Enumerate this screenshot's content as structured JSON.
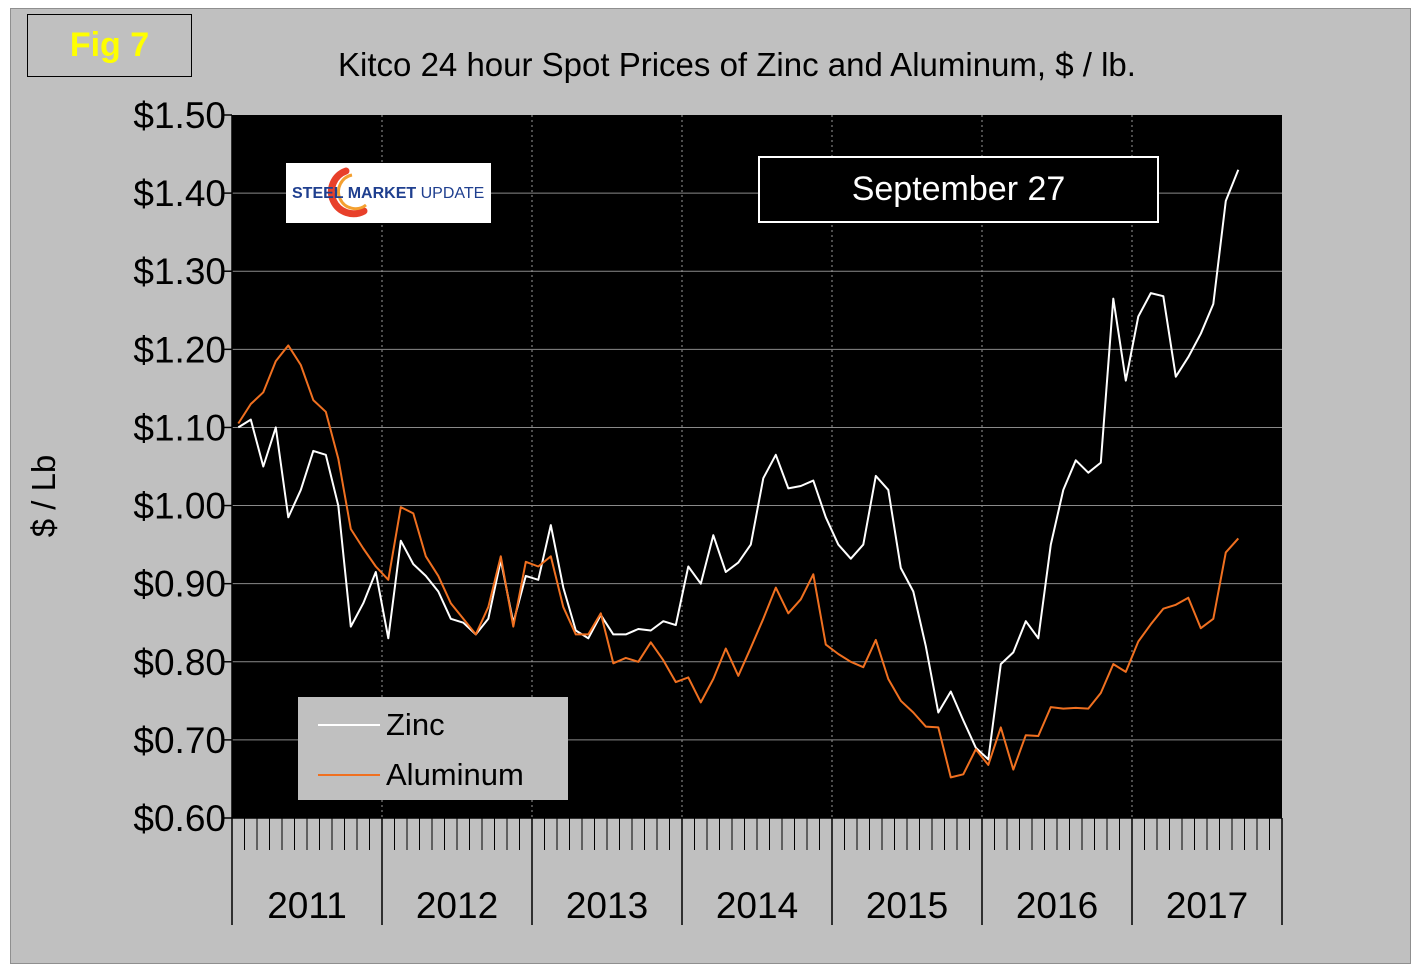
{
  "figure_label": "Fig 7",
  "date_label": "September 27",
  "logo": {
    "bold_text": "STEEL MARKET",
    "normal_text": "UPDATE"
  },
  "chart_data": {
    "type": "line",
    "title": "Kitco 24 hour Spot Prices of Zinc and Aluminum, $ / lb.",
    "xlabel": "",
    "ylabel": "$ / Lb",
    "ylim": [
      0.6,
      1.5
    ],
    "ytick_values": [
      0.6,
      0.7,
      0.8,
      0.9,
      1.0,
      1.1,
      1.2,
      1.3,
      1.4,
      1.5
    ],
    "ytick_labels": [
      "$0.60",
      "$0.70",
      "$0.80",
      "$0.90",
      "$1.00",
      "$1.10",
      "$1.20",
      "$1.30",
      "$1.40",
      "$1.50"
    ],
    "year_labels": [
      "2011",
      "2012",
      "2013",
      "2014",
      "2015",
      "2016",
      "2017"
    ],
    "grid": true,
    "legend_position": "bottom-left",
    "background": "#000000",
    "series": [
      {
        "name": "Zinc",
        "color": "#ffffff",
        "values": [
          1.1,
          1.11,
          1.05,
          1.1,
          0.985,
          1.02,
          1.07,
          1.065,
          1.0,
          0.845,
          0.875,
          0.915,
          0.83,
          0.955,
          0.925,
          0.91,
          0.89,
          0.855,
          0.85,
          0.835,
          0.855,
          0.93,
          0.85,
          0.91,
          0.905,
          0.975,
          0.895,
          0.84,
          0.83,
          0.86,
          0.835,
          0.835,
          0.842,
          0.84,
          0.852,
          0.847,
          0.922,
          0.9,
          0.962,
          0.915,
          0.927,
          0.95,
          1.035,
          1.065,
          1.022,
          1.025,
          1.032,
          0.985,
          0.95,
          0.932,
          0.95,
          1.038,
          1.02,
          0.92,
          0.89,
          0.82,
          0.735,
          0.762,
          0.725,
          0.69,
          0.675,
          0.797,
          0.812,
          0.852,
          0.83,
          0.95,
          1.02,
          1.058,
          1.042,
          1.055,
          1.265,
          1.16,
          1.242,
          1.272,
          1.268,
          1.165,
          1.19,
          1.22,
          1.258,
          1.39,
          1.43
        ]
      },
      {
        "name": "Aluminum",
        "color": "#f07020",
        "values": [
          1.105,
          1.13,
          1.145,
          1.185,
          1.205,
          1.18,
          1.135,
          1.12,
          1.06,
          0.97,
          0.945,
          0.922,
          0.905,
          0.998,
          0.99,
          0.935,
          0.91,
          0.875,
          0.855,
          0.835,
          0.87,
          0.935,
          0.845,
          0.928,
          0.922,
          0.935,
          0.87,
          0.835,
          0.835,
          0.862,
          0.798,
          0.805,
          0.8,
          0.825,
          0.802,
          0.774,
          0.78,
          0.748,
          0.778,
          0.817,
          0.782,
          0.818,
          0.855,
          0.895,
          0.862,
          0.88,
          0.912,
          0.822,
          0.81,
          0.8,
          0.793,
          0.828,
          0.778,
          0.75,
          0.735,
          0.717,
          0.716,
          0.652,
          0.656,
          0.688,
          0.668,
          0.716,
          0.662,
          0.706,
          0.705,
          0.742,
          0.74,
          0.741,
          0.74,
          0.76,
          0.797,
          0.787,
          0.826,
          0.848,
          0.868,
          0.873,
          0.882,
          0.843,
          0.855,
          0.94,
          0.958
        ]
      }
    ]
  }
}
